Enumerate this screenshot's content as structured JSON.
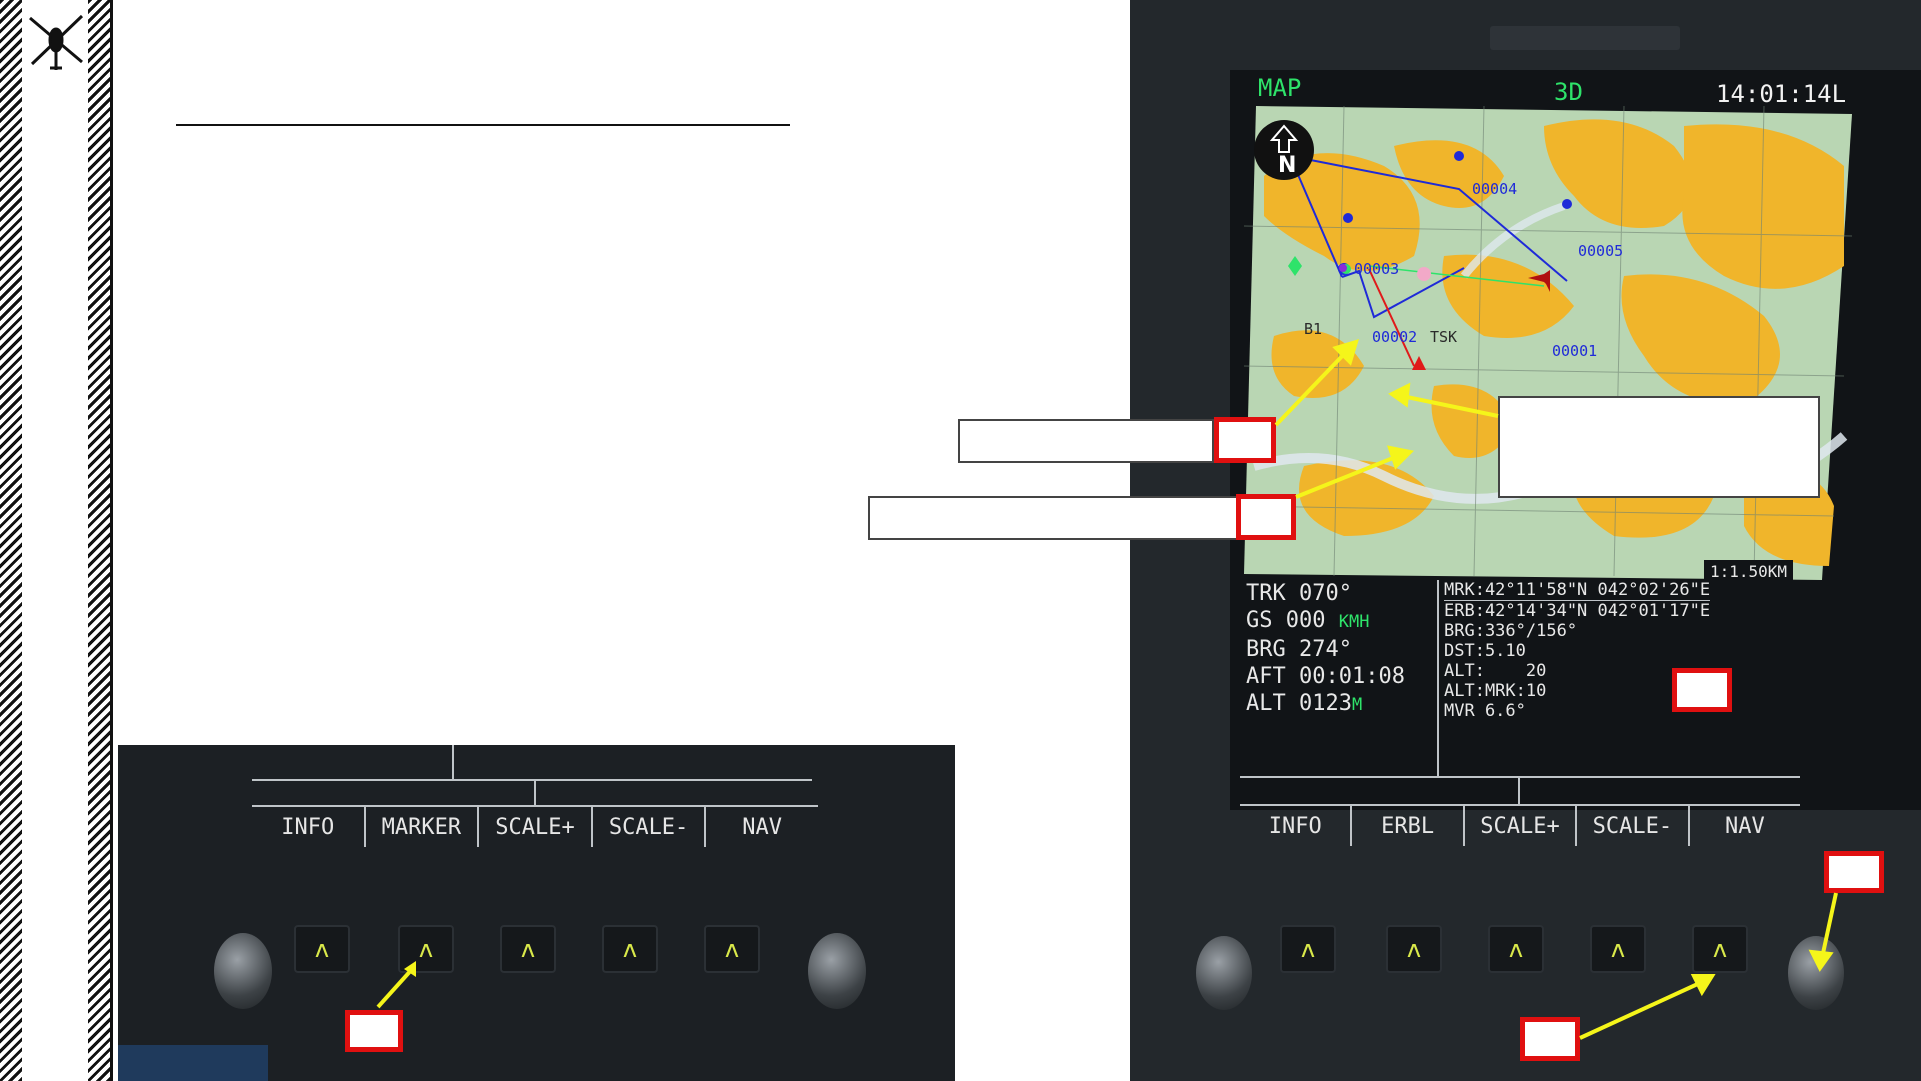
{
  "colors": {
    "accent_green": "#2ee36a",
    "map_land": "#b9d6b3",
    "map_forest": "#f0b52b",
    "route_blue": "#1f2ad8",
    "route_red": "#e01a1a",
    "callout_red": "#e01010",
    "arrow_yellow": "#f5f51a"
  },
  "sidebar": {
    "logo_icon": "helicopter-icon"
  },
  "left_mfd": {
    "buttons": [
      "INFO",
      "MARKER",
      "SCALE+",
      "SCALE-",
      "NAV"
    ],
    "key_glyph": "ʌ"
  },
  "right_mfd": {
    "mode": "MAP",
    "view": "3D",
    "clock": "14:01:14L",
    "north_label": "N",
    "scale": "1:1.50KM",
    "waypoints": {
      "w1": "00001",
      "w2": "00002",
      "w3": "00003",
      "w4": "00004",
      "w5": "00005",
      "tsk": "TSK",
      "b1": "B1"
    },
    "nav": {
      "trk_label": "TRK",
      "trk_value": "070°",
      "gs_label": "GS",
      "gs_value": "000",
      "gs_unit": "KMH",
      "brg_label": "BRG",
      "brg_value": "274°",
      "aft_label": "AFT",
      "aft_value": "00:01:08",
      "alt_label": "ALT",
      "alt_value": "0123",
      "alt_unit": "M"
    },
    "marker_info": {
      "mrk": "MRK:42°11'58\"N 042°02'26\"E",
      "erb": "ERB:42°14'34\"N 042°01'17\"E",
      "brg": "BRG:336°/156°",
      "dst": "DST:5.10",
      "alt": "ALT:    20",
      "alt_mrk": "ALT:MRK:10",
      "mvr": "MVR 6.6°"
    },
    "buttons": [
      "INFO",
      "ERBL",
      "SCALE+",
      "SCALE-",
      "NAV"
    ],
    "key_glyph": "ʌ"
  }
}
